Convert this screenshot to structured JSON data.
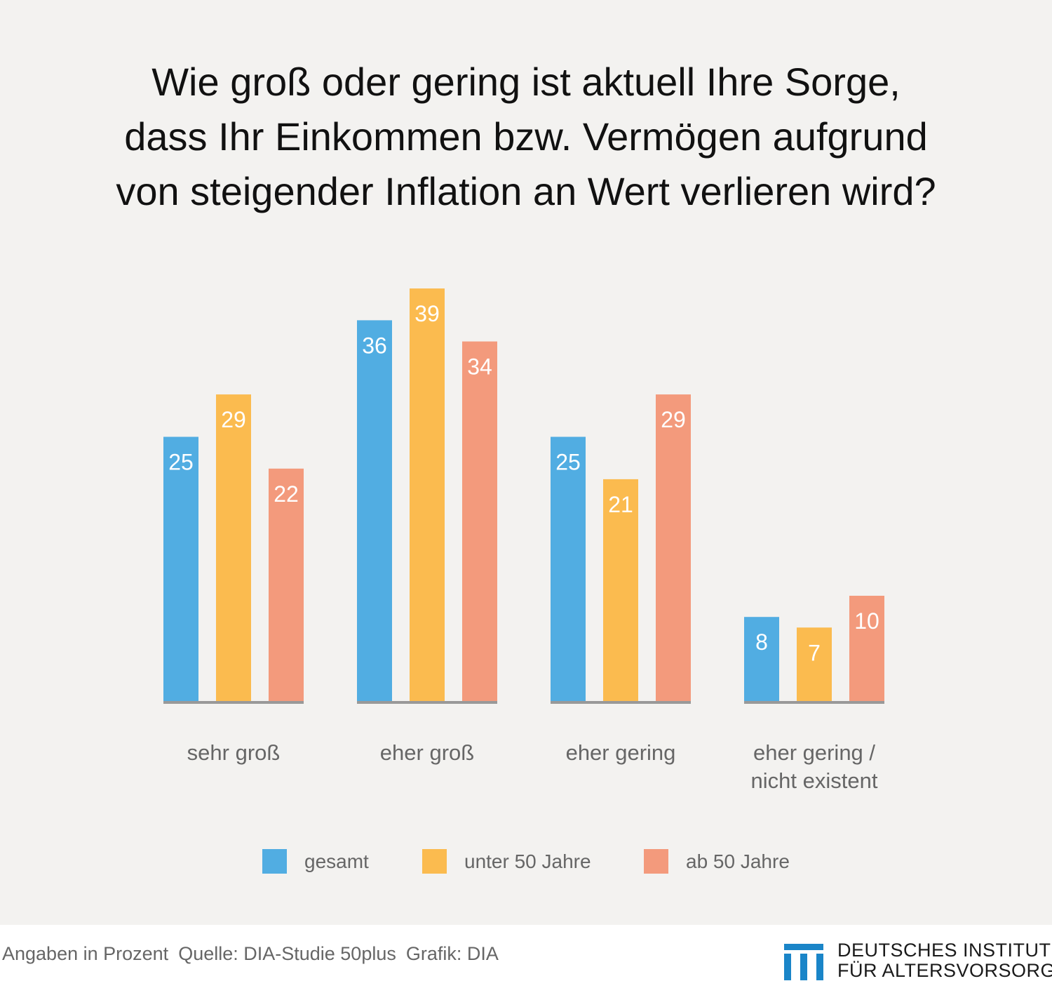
{
  "title_lines": [
    "Wie groß oder gering ist aktuell Ihre Sorge,",
    "dass Ihr Einkommen bzw. Vermögen aufgrund",
    "von steigender Inflation an Wert verlieren wird?"
  ],
  "chart_data": {
    "type": "bar",
    "title": "Wie groß oder gering ist aktuell Ihre Sorge, dass Ihr Einkommen bzw. Vermögen aufgrund von steigender Inflation an Wert verlieren wird?",
    "categories": [
      "sehr groß",
      "eher groß",
      "eher gering",
      "eher gering / nicht existent"
    ],
    "category_lines": [
      [
        "sehr groß"
      ],
      [
        "eher groß"
      ],
      [
        "eher gering"
      ],
      [
        "eher gering /",
        "nicht existent"
      ]
    ],
    "series": [
      {
        "name": "gesamt",
        "values": [
          25,
          36,
          25,
          8
        ],
        "color": "#51ade2"
      },
      {
        "name": "unter 50 Jahre",
        "values": [
          29,
          39,
          21,
          7
        ],
        "color": "#fbbb4f"
      },
      {
        "name": "ab 50 Jahre",
        "values": [
          22,
          34,
          29,
          10
        ],
        "color": "#f39a7c"
      }
    ],
    "data_labels": true,
    "grid": false,
    "legend_position": "bottom-center",
    "baseline_color": "#999999"
  },
  "footer": {
    "units": "Angaben in Prozent",
    "source": "Quelle: DIA-Studie 50plus",
    "credit": "Grafik: DIA"
  },
  "logo": {
    "line1": "DEUTSCHES INSTITUT",
    "line2": "FÜR ALTERSVORSORGE",
    "color": "#1a85c8"
  }
}
